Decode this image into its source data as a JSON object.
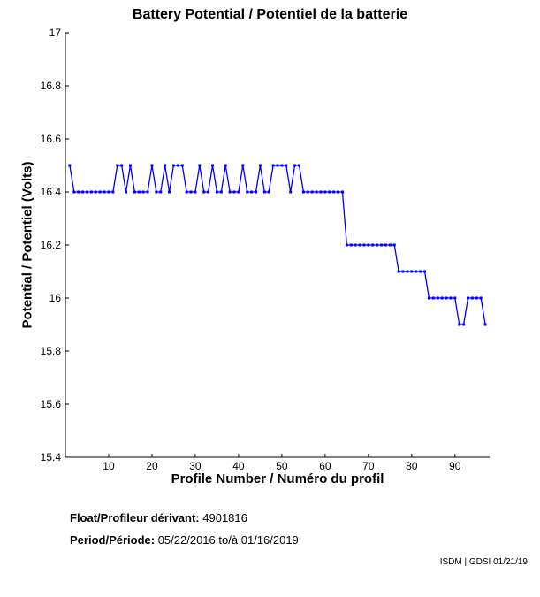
{
  "chart_data": {
    "type": "line",
    "title": "Battery Potential / Potentiel de la batterie",
    "xlabel": "Profile Number / Numéro du profil",
    "ylabel": "Potential / Potentiel (Volts)",
    "xlim": [
      0,
      98
    ],
    "ylim": [
      15.4,
      17
    ],
    "xticks": [
      10,
      20,
      30,
      40,
      50,
      60,
      70,
      80,
      90
    ],
    "yticks": [
      15.4,
      15.6,
      15.8,
      16,
      16.2,
      16.4,
      16.6,
      16.8,
      17
    ],
    "ytick_labels": [
      "15.4",
      "15.6",
      "15.8",
      "16",
      "16.2",
      "16.4",
      "16.6",
      "16.8",
      "17"
    ],
    "grid": false,
    "series": [
      {
        "name": "Battery Potential",
        "color": "#0000ff",
        "x_start": 1,
        "values": [
          16.5,
          16.4,
          16.4,
          16.4,
          16.4,
          16.4,
          16.4,
          16.4,
          16.4,
          16.4,
          16.4,
          16.5,
          16.5,
          16.4,
          16.5,
          16.4,
          16.4,
          16.4,
          16.4,
          16.5,
          16.4,
          16.4,
          16.5,
          16.4,
          16.5,
          16.5,
          16.5,
          16.4,
          16.4,
          16.4,
          16.5,
          16.4,
          16.4,
          16.5,
          16.4,
          16.4,
          16.5,
          16.4,
          16.4,
          16.4,
          16.5,
          16.4,
          16.4,
          16.4,
          16.5,
          16.4,
          16.4,
          16.5,
          16.5,
          16.5,
          16.5,
          16.4,
          16.5,
          16.5,
          16.4,
          16.4,
          16.4,
          16.4,
          16.4,
          16.4,
          16.4,
          16.4,
          16.4,
          16.4,
          16.2,
          16.2,
          16.2,
          16.2,
          16.2,
          16.2,
          16.2,
          16.2,
          16.2,
          16.2,
          16.2,
          16.2,
          16.1,
          16.1,
          16.1,
          16.1,
          16.1,
          16.1,
          16.1,
          16.0,
          16.0,
          16.0,
          16.0,
          16.0,
          16.0,
          16.0,
          15.9,
          15.9,
          16.0,
          16.0,
          16.0,
          16.0,
          15.9
        ]
      }
    ]
  },
  "info": {
    "float_label": "Float/Profileur dérivant:",
    "float_id": "4901816",
    "period_label": "Period/Période:",
    "period_start": "05/22/2016",
    "period_sep": "to/à",
    "period_end": "01/16/2019"
  },
  "footer": "ISDM | GDSI 01/21/19"
}
